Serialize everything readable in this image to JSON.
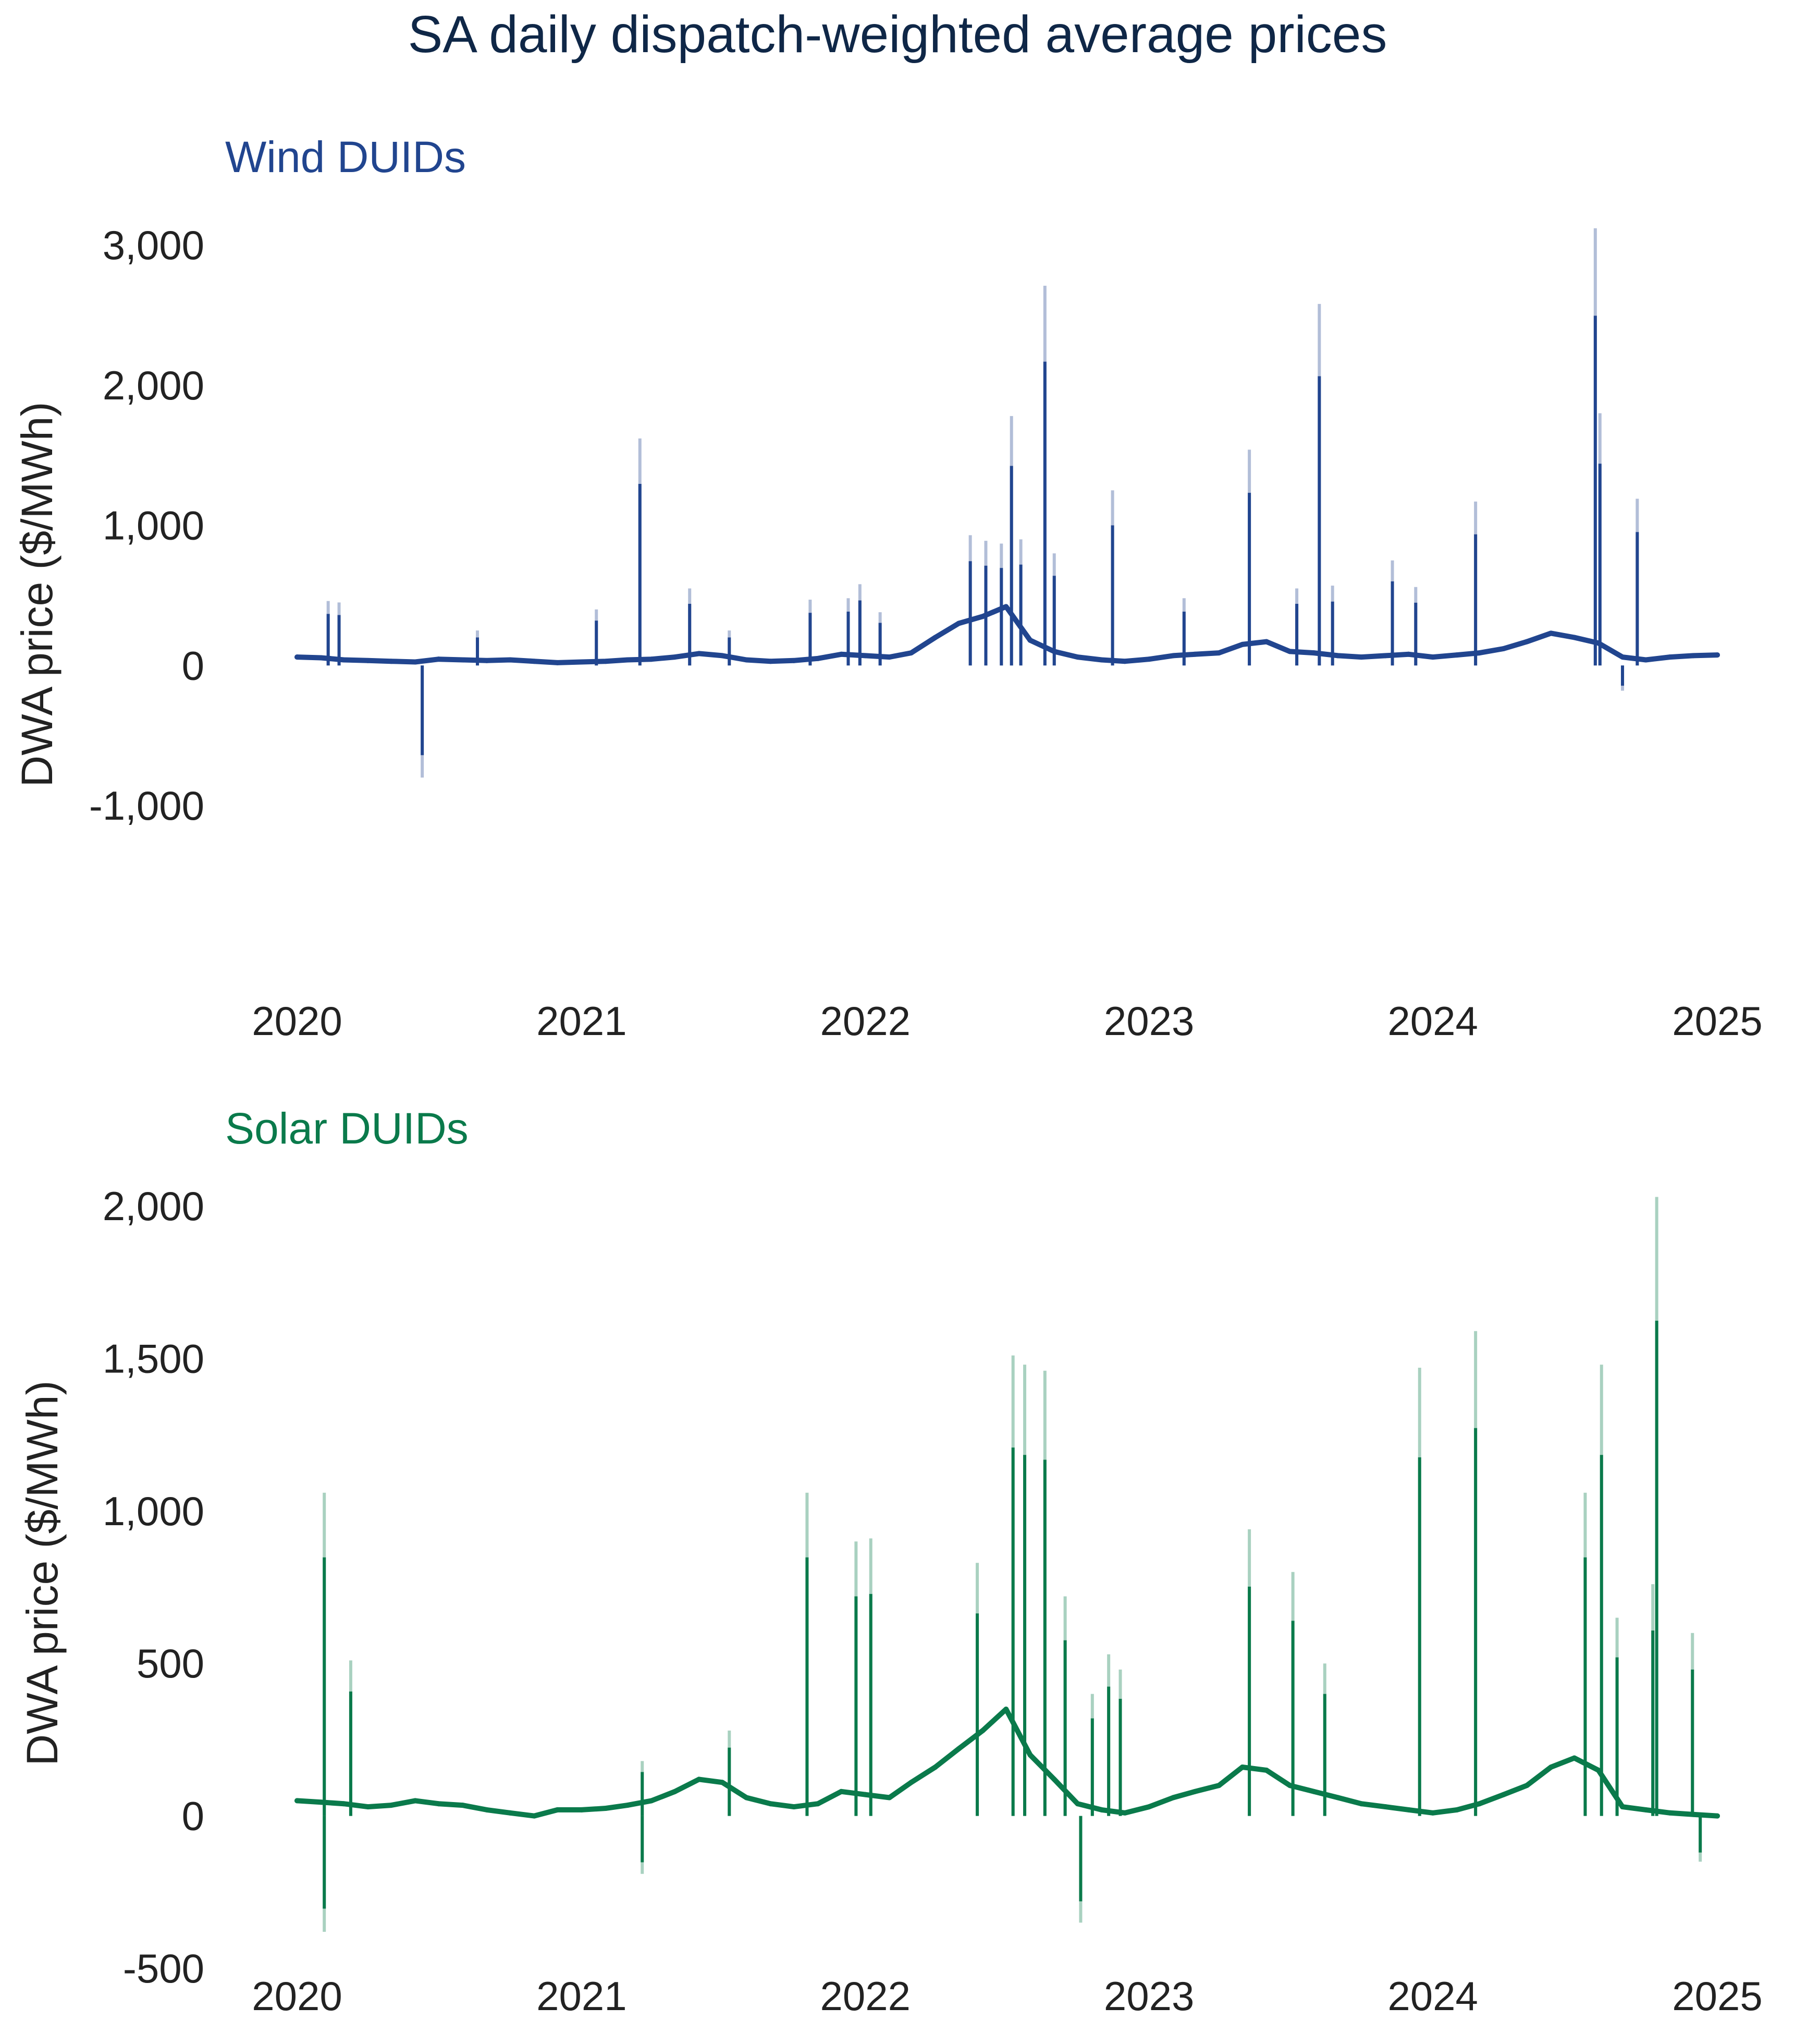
{
  "chart_data": {
    "title": "SA daily dispatch-weighted average prices",
    "type": "line",
    "panels": [
      {
        "subtitle": "Wind DUIDs",
        "ylabel": "DWA price ($/MWh)",
        "xlabel": "",
        "color": "#21458f",
        "x_ticks": [
          "2020",
          "2021",
          "2022",
          "2023",
          "2024",
          "2025"
        ],
        "y_ticks": [
          "3,000",
          "2,000",
          "1,000",
          "0",
          "-1,000"
        ],
        "ylim": [
          -1000,
          3000
        ],
        "xlim": [
          "2020-01-01",
          "2025-01-01"
        ],
        "grid": false,
        "legend": "none",
        "series": [
          {
            "x": [
              "2020-01-01",
              "2020-02-01",
              "2020-03-01",
              "2020-04-01",
              "2020-05-01",
              "2020-06-01",
              "2020-07-01",
              "2020-08-01",
              "2020-09-01",
              "2020-10-01",
              "2020-11-01",
              "2020-12-01",
              "2021-01-01",
              "2021-02-01",
              "2021-03-01",
              "2021-04-01",
              "2021-05-01",
              "2021-06-01",
              "2021-07-01",
              "2021-08-01",
              "2021-09-01",
              "2021-10-01",
              "2021-11-01",
              "2021-12-01",
              "2022-01-01",
              "2022-02-01",
              "2022-03-01",
              "2022-04-01",
              "2022-05-01",
              "2022-06-01",
              "2022-07-01",
              "2022-08-01",
              "2022-09-01",
              "2022-10-01",
              "2022-11-01",
              "2022-12-01",
              "2023-01-01",
              "2023-02-01",
              "2023-03-01",
              "2023-04-01",
              "2023-05-01",
              "2023-06-01",
              "2023-07-01",
              "2023-08-01",
              "2023-09-01",
              "2023-10-01",
              "2023-11-01",
              "2023-12-01",
              "2024-01-01",
              "2024-02-01",
              "2024-03-01",
              "2024-04-01",
              "2024-05-01",
              "2024-06-01",
              "2024-07-01",
              "2024-08-01",
              "2024-09-01",
              "2024-10-01",
              "2024-11-01",
              "2024-12-01",
              "2025-01-01"
            ],
            "values": [
              60,
              55,
              40,
              35,
              30,
              25,
              45,
              40,
              35,
              40,
              30,
              20,
              25,
              30,
              40,
              45,
              60,
              85,
              70,
              40,
              30,
              35,
              50,
              80,
              70,
              60,
              90,
              200,
              300,
              350,
              420,
              180,
              100,
              60,
              40,
              30,
              45,
              70,
              80,
              90,
              150,
              170,
              100,
              90,
              70,
              60,
              70,
              80,
              60,
              75,
              90,
              120,
              170,
              230,
              200,
              160,
              60,
              40,
              60,
              70,
              75
            ]
          }
        ],
        "spikes": [
          {
            "x": "2020-02-10",
            "value": 460
          },
          {
            "x": "2020-02-24",
            "value": 450
          },
          {
            "x": "2020-06-10",
            "value": -800
          },
          {
            "x": "2020-08-20",
            "value": 250
          },
          {
            "x": "2021-01-20",
            "value": 400
          },
          {
            "x": "2021-03-17",
            "value": 1620
          },
          {
            "x": "2021-05-20",
            "value": 550
          },
          {
            "x": "2021-07-10",
            "value": 250
          },
          {
            "x": "2021-10-22",
            "value": 470
          },
          {
            "x": "2021-12-10",
            "value": 480
          },
          {
            "x": "2021-12-25",
            "value": 580
          },
          {
            "x": "2022-01-20",
            "value": 380
          },
          {
            "x": "2022-05-16",
            "value": 930
          },
          {
            "x": "2022-06-05",
            "value": 890
          },
          {
            "x": "2022-06-25",
            "value": 870
          },
          {
            "x": "2022-07-08",
            "value": 1780
          },
          {
            "x": "2022-07-20",
            "value": 900
          },
          {
            "x": "2022-08-20",
            "value": 2710
          },
          {
            "x": "2022-09-01",
            "value": 800
          },
          {
            "x": "2022-11-15",
            "value": 1250
          },
          {
            "x": "2023-02-15",
            "value": 480
          },
          {
            "x": "2023-05-10",
            "value": 1540
          },
          {
            "x": "2023-07-10",
            "value": 550
          },
          {
            "x": "2023-08-08",
            "value": 2580
          },
          {
            "x": "2023-08-25",
            "value": 570
          },
          {
            "x": "2023-11-10",
            "value": 750
          },
          {
            "x": "2023-12-10",
            "value": 560
          },
          {
            "x": "2024-02-25",
            "value": 1170
          },
          {
            "x": "2024-07-28",
            "value": 3120
          },
          {
            "x": "2024-08-03",
            "value": 1800
          },
          {
            "x": "2024-09-20",
            "value": 1190
          },
          {
            "x": "2024-09-01",
            "value": -180
          }
        ]
      },
      {
        "subtitle": "Solar DUIDs",
        "ylabel": "DWA price ($/MWh)",
        "xlabel": "",
        "color": "#0a7a4b",
        "x_ticks": [
          "2020",
          "2021",
          "2022",
          "2023",
          "2024",
          "2025"
        ],
        "y_ticks": [
          "2,000",
          "1,500",
          "1,000",
          "500",
          "0",
          "-500"
        ],
        "ylim": [
          -500,
          2000
        ],
        "xlim": [
          "2020-01-01",
          "2025-01-01"
        ],
        "grid": false,
        "legend": "none",
        "series": [
          {
            "x": [
              "2020-01-01",
              "2020-02-01",
              "2020-03-01",
              "2020-04-01",
              "2020-05-01",
              "2020-06-01",
              "2020-07-01",
              "2020-08-01",
              "2020-09-01",
              "2020-10-01",
              "2020-11-01",
              "2020-12-01",
              "2021-01-01",
              "2021-02-01",
              "2021-03-01",
              "2021-04-01",
              "2021-05-01",
              "2021-06-01",
              "2021-07-01",
              "2021-08-01",
              "2021-09-01",
              "2021-10-01",
              "2021-11-01",
              "2021-12-01",
              "2022-01-01",
              "2022-02-01",
              "2022-03-01",
              "2022-04-01",
              "2022-05-01",
              "2022-06-01",
              "2022-07-01",
              "2022-08-01",
              "2022-09-01",
              "2022-10-01",
              "2022-11-01",
              "2022-12-01",
              "2023-01-01",
              "2023-02-01",
              "2023-03-01",
              "2023-04-01",
              "2023-05-01",
              "2023-06-01",
              "2023-07-01",
              "2023-08-01",
              "2023-09-01",
              "2023-10-01",
              "2023-11-01",
              "2023-12-01",
              "2024-01-01",
              "2024-02-01",
              "2024-03-01",
              "2024-04-01",
              "2024-05-01",
              "2024-06-01",
              "2024-07-01",
              "2024-08-01",
              "2024-09-01",
              "2024-10-01",
              "2024-11-01",
              "2024-12-01",
              "2025-01-01"
            ],
            "values": [
              50,
              45,
              40,
              30,
              35,
              50,
              40,
              35,
              20,
              10,
              0,
              20,
              20,
              25,
              35,
              50,
              80,
              120,
              110,
              60,
              40,
              30,
              40,
              80,
              70,
              60,
              110,
              160,
              220,
              280,
              350,
              200,
              120,
              40,
              20,
              10,
              30,
              60,
              80,
              100,
              160,
              150,
              100,
              80,
              60,
              40,
              30,
              20,
              10,
              20,
              40,
              70,
              100,
              160,
              190,
              150,
              30,
              20,
              10,
              5,
              0
            ]
          }
        ],
        "spikes": [
          {
            "x": "2020-02-05",
            "value": 1060
          },
          {
            "x": "2020-02-05",
            "value": -380
          },
          {
            "x": "2020-03-10",
            "value": 510
          },
          {
            "x": "2021-03-20",
            "value": 180
          },
          {
            "x": "2021-03-20",
            "value": -190
          },
          {
            "x": "2021-07-10",
            "value": 280
          },
          {
            "x": "2021-10-18",
            "value": 1060
          },
          {
            "x": "2021-12-20",
            "value": 900
          },
          {
            "x": "2022-01-08",
            "value": 910
          },
          {
            "x": "2022-05-25",
            "value": 830
          },
          {
            "x": "2022-07-10",
            "value": 1510
          },
          {
            "x": "2022-07-25",
            "value": 1480
          },
          {
            "x": "2022-08-20",
            "value": 1460
          },
          {
            "x": "2022-09-15",
            "value": 720
          },
          {
            "x": "2022-10-05",
            "value": -350
          },
          {
            "x": "2022-10-20",
            "value": 400
          },
          {
            "x": "2022-11-10",
            "value": 530
          },
          {
            "x": "2022-11-25",
            "value": 480
          },
          {
            "x": "2023-05-10",
            "value": 940
          },
          {
            "x": "2023-07-05",
            "value": 800
          },
          {
            "x": "2023-08-15",
            "value": 500
          },
          {
            "x": "2023-12-15",
            "value": 1470
          },
          {
            "x": "2024-02-25",
            "value": 1590
          },
          {
            "x": "2024-07-15",
            "value": 1060
          },
          {
            "x": "2024-08-05",
            "value": 1480
          },
          {
            "x": "2024-08-25",
            "value": 650
          },
          {
            "x": "2024-10-15",
            "value": 2030
          },
          {
            "x": "2024-10-10",
            "value": 760
          },
          {
            "x": "2024-11-30",
            "value": 600
          },
          {
            "x": "2024-12-10",
            "value": -150
          }
        ]
      }
    ]
  }
}
